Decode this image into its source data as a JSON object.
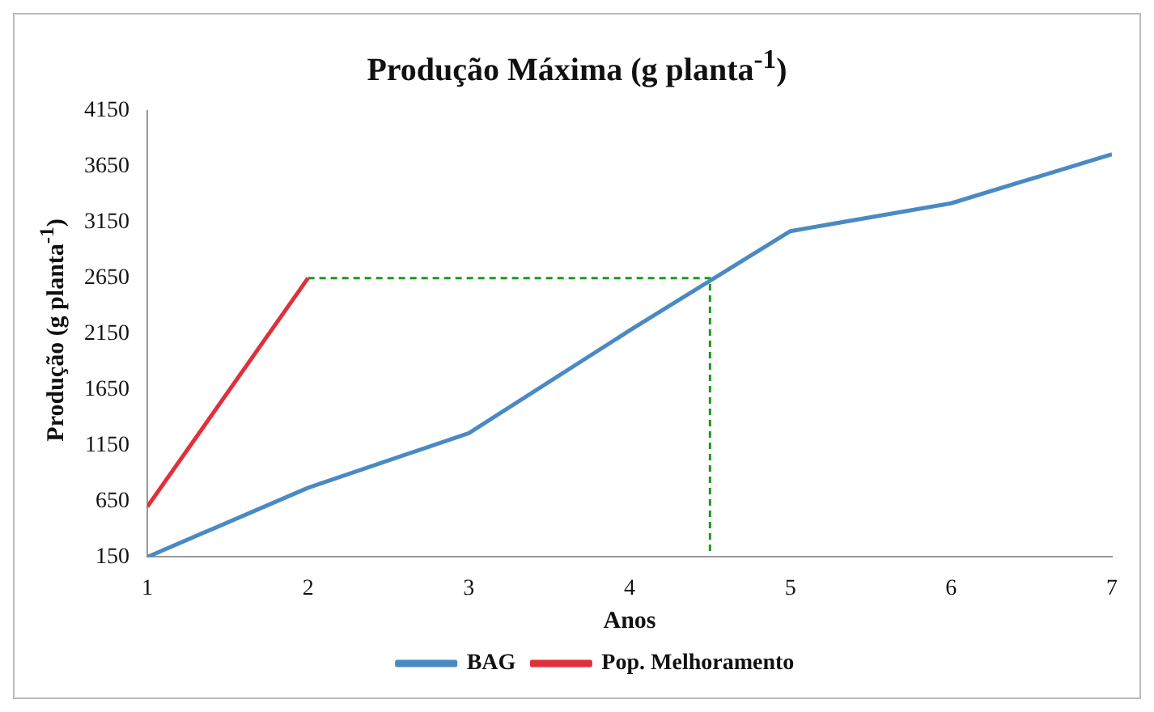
{
  "chart_data": {
    "type": "line",
    "title": "Produção Máxima (g planta$^{-1}$)",
    "xlabel": "Anos",
    "ylabel": "Produção (g planta$^{-1}$)",
    "x": [
      1,
      2,
      3,
      4,
      5,
      6,
      7
    ],
    "series": [
      {
        "name": "BAG",
        "color": "#4a8ac4",
        "values": [
          150,
          770,
          1260,
          2180,
          3070,
          3320,
          3760
        ]
      },
      {
        "name": "Pop. Melhoramento",
        "color": "#e0303a",
        "x": [
          1,
          2
        ],
        "values": [
          600,
          2650
        ]
      },
      {
        "type": "line",
        "color": "#1a9a1a",
        "line_style": "dashed",
        "x": [
          2,
          4.5,
          4.5
        ],
        "values": [
          2650,
          2650,
          200
        ]
      }
    ],
    "xlim": [
      1,
      7
    ],
    "xticks": [
      1,
      2,
      3,
      4,
      5,
      6,
      7
    ],
    "ylim": [
      150,
      4150
    ],
    "yticks": [
      150,
      650,
      1150,
      1650,
      2150,
      2650,
      3150,
      3650,
      4150
    ],
    "grid": false,
    "legend": "bottom",
    "marker": "none"
  }
}
